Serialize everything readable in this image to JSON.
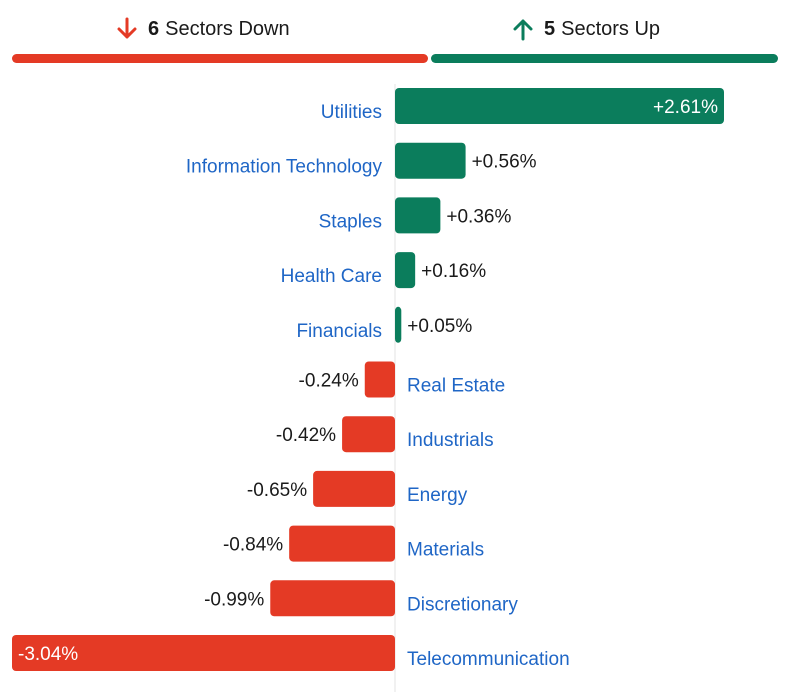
{
  "header": {
    "down_count": "6",
    "down_label": "Sectors Down",
    "up_count": "5",
    "up_label": "Sectors Up"
  },
  "colors": {
    "up": "#0b7d5c",
    "down": "#e43a25",
    "label": "#1f66c6",
    "value_text": "#1a1a1a",
    "axis": "#e3e3e3"
  },
  "chart_data": {
    "type": "bar",
    "orientation": "horizontal",
    "categories": [
      "Utilities",
      "Information Technology",
      "Staples",
      "Health Care",
      "Financials",
      "Real Estate",
      "Industrials",
      "Energy",
      "Materials",
      "Discretionary",
      "Telecommunication"
    ],
    "values": [
      2.61,
      0.56,
      0.36,
      0.16,
      0.05,
      -0.24,
      -0.42,
      -0.65,
      -0.84,
      -0.99,
      -3.04
    ],
    "value_labels": [
      "+2.61%",
      "+0.56%",
      "+0.36%",
      "+0.16%",
      "+0.05%",
      "-0.24%",
      "-0.42%",
      "-0.65%",
      "-0.84%",
      "-0.99%",
      "-3.04%"
    ],
    "unit": "%",
    "xlim": [
      -3.04,
      2.61
    ],
    "grid": false,
    "legend": "none"
  }
}
